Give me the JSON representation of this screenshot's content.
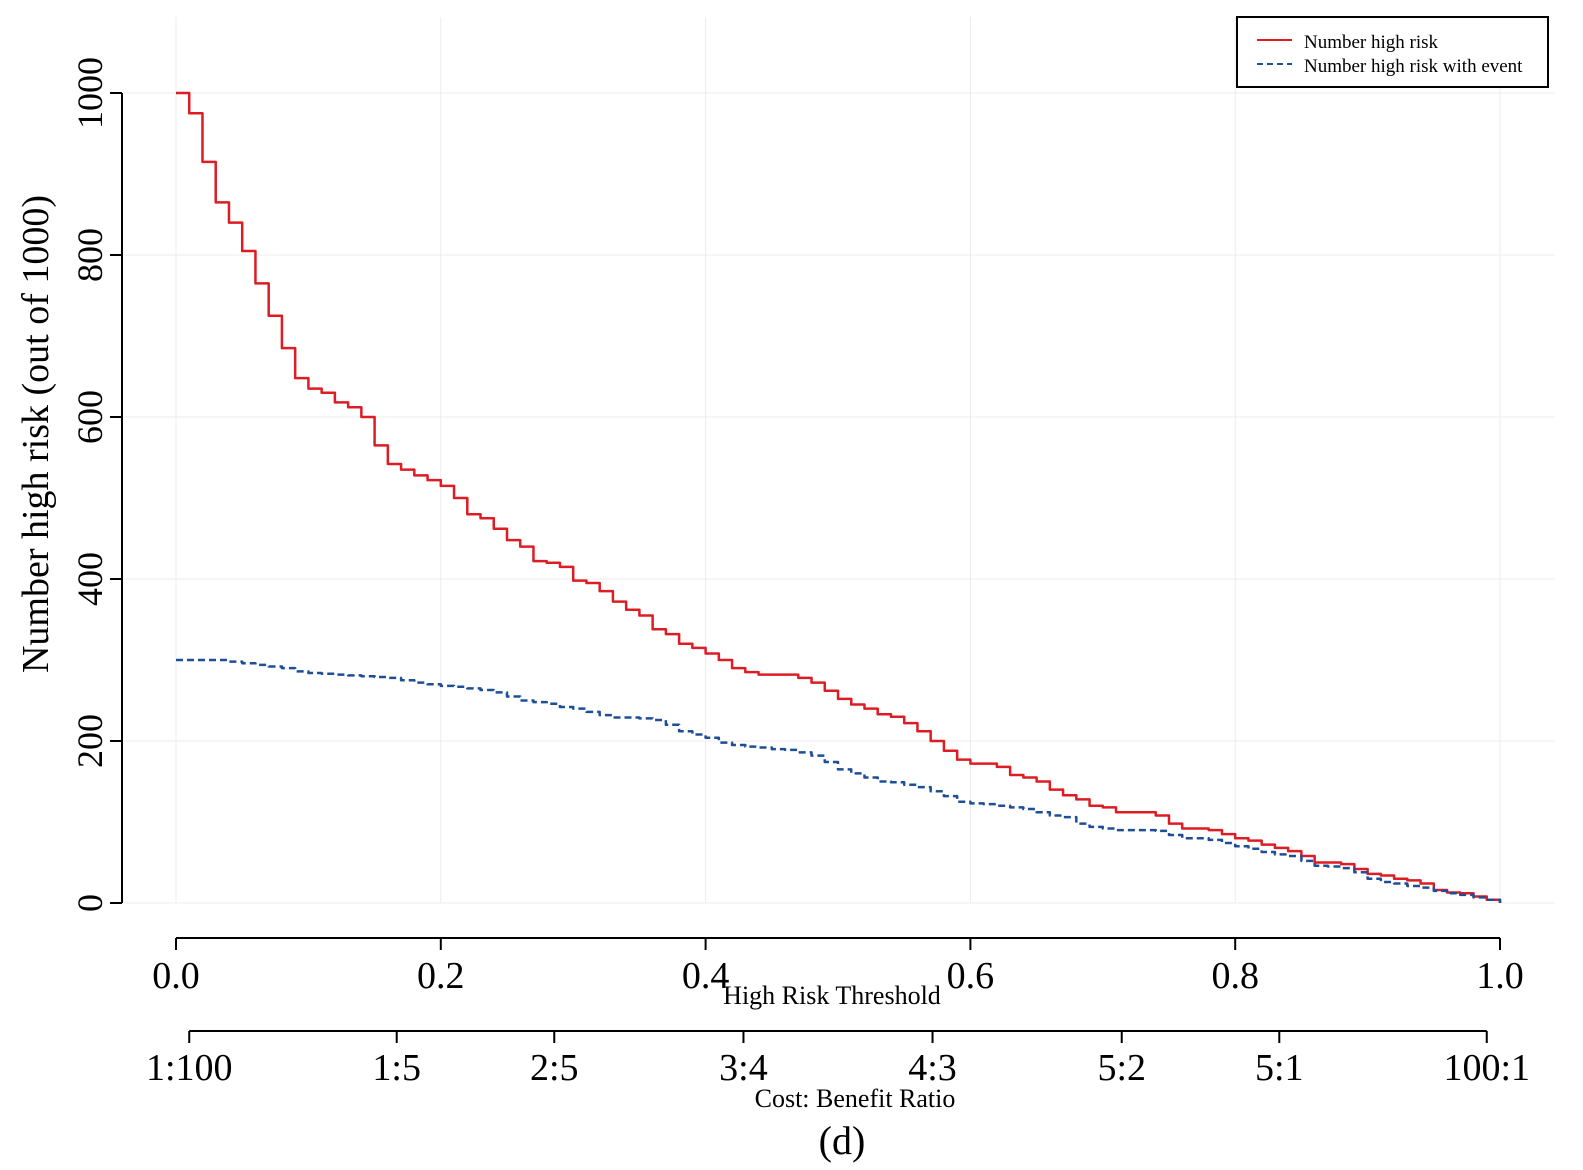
{
  "chart_data": {
    "type": "line",
    "xlabel": "High Risk Threshold",
    "ylabel": "Number high risk (out of 1000)",
    "caption": "(d)",
    "xlim": [
      0,
      1
    ],
    "ylim": [
      0,
      1000
    ],
    "grid": true,
    "legend_position": "top-right",
    "x_ticks": [
      "0.0",
      "0.2",
      "0.4",
      "0.6",
      "0.8",
      "1.0"
    ],
    "y_ticks": [
      "0",
      "200",
      "400",
      "600",
      "800",
      "1000"
    ],
    "secondary_axis": {
      "label": "Cost: Benefit Ratio",
      "ticks": [
        "1:100",
        "1:5",
        "2:5",
        "3:4",
        "4:3",
        "5:2",
        "5:1",
        "100:1"
      ],
      "tick_x": [
        0.01,
        0.1667,
        0.2857,
        0.4286,
        0.5714,
        0.7143,
        0.8333,
        0.99
      ]
    },
    "series": [
      {
        "name": "Number high risk",
        "color": "#dd1c24",
        "style": "solid",
        "x": [
          0.0,
          0.01,
          0.02,
          0.03,
          0.04,
          0.05,
          0.06,
          0.07,
          0.08,
          0.09,
          0.1,
          0.11,
          0.12,
          0.13,
          0.14,
          0.15,
          0.16,
          0.17,
          0.18,
          0.19,
          0.2,
          0.21,
          0.22,
          0.23,
          0.24,
          0.25,
          0.26,
          0.27,
          0.28,
          0.29,
          0.3,
          0.31,
          0.32,
          0.33,
          0.34,
          0.35,
          0.36,
          0.37,
          0.38,
          0.39,
          0.4,
          0.41,
          0.42,
          0.43,
          0.44,
          0.45,
          0.46,
          0.47,
          0.48,
          0.49,
          0.5,
          0.51,
          0.52,
          0.53,
          0.54,
          0.55,
          0.56,
          0.57,
          0.58,
          0.59,
          0.6,
          0.61,
          0.62,
          0.63,
          0.64,
          0.65,
          0.66,
          0.67,
          0.68,
          0.69,
          0.7,
          0.71,
          0.72,
          0.73,
          0.74,
          0.75,
          0.76,
          0.77,
          0.78,
          0.79,
          0.8,
          0.81,
          0.82,
          0.83,
          0.84,
          0.85,
          0.86,
          0.87,
          0.88,
          0.89,
          0.9,
          0.91,
          0.92,
          0.93,
          0.94,
          0.95,
          0.96,
          0.97,
          0.98,
          0.99,
          1.0
        ],
        "values": [
          1000,
          975,
          915,
          865,
          840,
          805,
          765,
          725,
          685,
          648,
          635,
          630,
          618,
          612,
          600,
          565,
          542,
          535,
          528,
          522,
          515,
          500,
          480,
          475,
          462,
          448,
          440,
          422,
          420,
          415,
          398,
          395,
          385,
          372,
          362,
          355,
          338,
          332,
          320,
          315,
          308,
          300,
          290,
          285,
          282,
          282,
          282,
          278,
          272,
          262,
          252,
          245,
          240,
          233,
          230,
          222,
          212,
          200,
          188,
          177,
          172,
          172,
          168,
          158,
          155,
          150,
          140,
          133,
          128,
          120,
          118,
          112,
          112,
          112,
          108,
          98,
          92,
          92,
          90,
          85,
          80,
          77,
          72,
          68,
          64,
          58,
          50,
          50,
          48,
          42,
          36,
          34,
          30,
          28,
          24,
          16,
          13,
          12,
          8,
          4,
          0
        ]
      },
      {
        "name": "Number high risk with event",
        "color": "#1f4e99",
        "style": "dashed",
        "x": [
          0.0,
          0.01,
          0.02,
          0.03,
          0.04,
          0.05,
          0.06,
          0.07,
          0.08,
          0.09,
          0.1,
          0.11,
          0.12,
          0.13,
          0.14,
          0.15,
          0.16,
          0.17,
          0.18,
          0.19,
          0.2,
          0.21,
          0.22,
          0.23,
          0.24,
          0.25,
          0.26,
          0.27,
          0.28,
          0.29,
          0.3,
          0.31,
          0.32,
          0.33,
          0.34,
          0.35,
          0.36,
          0.37,
          0.38,
          0.39,
          0.4,
          0.41,
          0.42,
          0.43,
          0.44,
          0.45,
          0.46,
          0.47,
          0.48,
          0.49,
          0.5,
          0.51,
          0.52,
          0.53,
          0.54,
          0.55,
          0.56,
          0.57,
          0.58,
          0.59,
          0.6,
          0.61,
          0.62,
          0.63,
          0.64,
          0.65,
          0.66,
          0.67,
          0.68,
          0.69,
          0.7,
          0.71,
          0.72,
          0.73,
          0.74,
          0.75,
          0.76,
          0.77,
          0.78,
          0.79,
          0.8,
          0.81,
          0.82,
          0.83,
          0.84,
          0.85,
          0.86,
          0.87,
          0.88,
          0.89,
          0.9,
          0.91,
          0.92,
          0.93,
          0.94,
          0.95,
          0.96,
          0.97,
          0.98,
          0.99,
          1.0
        ],
        "values": [
          300,
          300,
          300,
          300,
          298,
          296,
          294,
          292,
          290,
          286,
          284,
          283,
          282,
          281,
          280,
          279,
          278,
          275,
          272,
          270,
          268,
          267,
          265,
          263,
          260,
          255,
          250,
          248,
          246,
          242,
          240,
          236,
          232,
          229,
          229,
          228,
          226,
          220,
          212,
          208,
          204,
          198,
          195,
          193,
          192,
          190,
          189,
          186,
          182,
          174,
          165,
          160,
          155,
          150,
          149,
          146,
          143,
          138,
          132,
          125,
          123,
          122,
          120,
          118,
          116,
          112,
          108,
          106,
          98,
          94,
          92,
          90,
          90,
          90,
          89,
          84,
          80,
          80,
          78,
          74,
          70,
          67,
          63,
          60,
          58,
          52,
          46,
          45,
          43,
          38,
          30,
          26,
          24,
          21,
          19,
          15,
          12,
          10,
          7,
          4,
          0
        ]
      }
    ]
  }
}
